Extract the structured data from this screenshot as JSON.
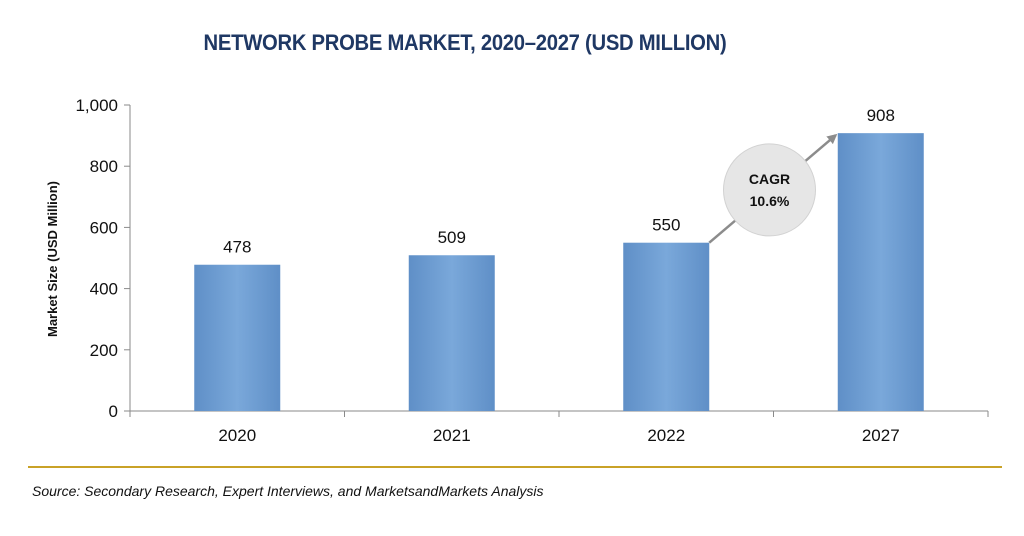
{
  "chart_data": {
    "type": "bar",
    "title": "NETWORK PROBE MARKET, 2020–2027 (USD MILLION)",
    "xlabel": "",
    "ylabel": "Market Size (USD Million)",
    "categories": [
      "2020",
      "2021",
      "2022",
      "2027"
    ],
    "values": [
      478,
      509,
      550,
      908
    ],
    "data_labels": [
      "478",
      "509",
      "550",
      "908"
    ],
    "ylim": [
      0,
      1000
    ],
    "yticks": [
      0,
      200,
      400,
      600,
      800,
      1000
    ],
    "ytick_labels": [
      "0",
      "200",
      "400",
      "600",
      "800",
      "1,000"
    ],
    "grid": false,
    "legend": "none",
    "bar_color": "#6f9fd3",
    "annotation": {
      "line1": "CAGR",
      "line2": "10.6%",
      "from_category": "2022",
      "to_category": "2027"
    },
    "source": "Source: Secondary Research, Expert Interviews, and MarketsandMarkets Analysis"
  },
  "colors": {
    "title": "#1f3864",
    "divider": "#c9a227",
    "arrow": "#8c8c8c",
    "bubble": "#e6e6e6"
  }
}
